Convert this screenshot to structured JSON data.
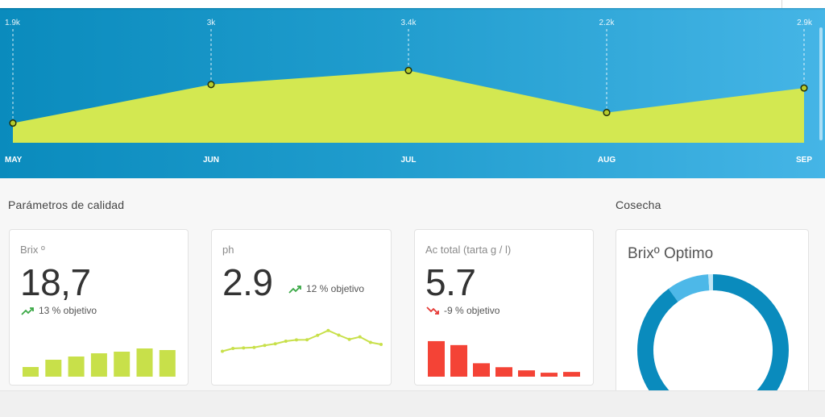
{
  "colors": {
    "hero_start": "#0a8bbd",
    "hero_end": "#45b5e6",
    "area_fill": "#d3e851",
    "bar_green": "#c8e04a",
    "bar_red": "#f44336",
    "trend_up": "#3aa845",
    "trend_down": "#e53935",
    "donut_main": "#0a8bbd",
    "donut_light": "#4db8e8",
    "donut_pale": "#bfe6f6"
  },
  "chart_data": [
    {
      "type": "area",
      "categories": [
        "MAY",
        "JUN",
        "JUL",
        "AUG",
        "SEP"
      ],
      "values": [
        1.9,
        3.0,
        3.4,
        2.2,
        2.9
      ],
      "value_labels": [
        "1.9k",
        "3k",
        "3.4k",
        "2.2k",
        "2.9k"
      ],
      "ylim": [
        1.5,
        3.8
      ],
      "grid": false
    },
    {
      "type": "bar",
      "name": "brix_bars",
      "values": [
        12,
        21,
        25,
        29,
        31,
        35,
        33
      ],
      "ylim": [
        0,
        40
      ]
    },
    {
      "type": "line",
      "name": "ph_sparkline",
      "values": [
        1.2,
        4.0,
        4.5,
        5.0,
        7.0,
        8.6,
        11.2,
        12.5,
        12.6,
        17.0,
        21.8,
        17.2,
        13.0,
        15.5,
        10.0,
        8.0
      ],
      "ylim": [
        0,
        24
      ]
    },
    {
      "type": "bar",
      "name": "acidez_bars",
      "values": [
        45,
        40,
        17,
        12,
        8,
        5,
        6
      ],
      "ylim": [
        0,
        48
      ]
    },
    {
      "type": "pie",
      "name": "brix_optimo_donut",
      "values": [
        90,
        9,
        1
      ]
    }
  ],
  "section": {
    "quality_title": "Parámetros de calidad",
    "harvest_title": "Cosecha"
  },
  "cards": {
    "brix": {
      "label": "Brix º",
      "value": "18,7",
      "trend": "13 % objetivo",
      "trend_dir": "up"
    },
    "ph": {
      "label": "ph",
      "value": "2.9",
      "trend": "12 % objetivo",
      "trend_dir": "up"
    },
    "acidez": {
      "label": "Ac total (tarta g / l)",
      "value": "5.7",
      "trend": "-9 % objetivo",
      "trend_dir": "down"
    },
    "harvest": {
      "title": "Brixº Optimo"
    }
  },
  "icons": {
    "trend_up": "trending-up-icon",
    "trend_down": "trending-down-icon"
  }
}
